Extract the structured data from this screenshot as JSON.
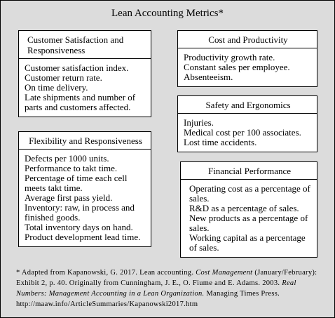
{
  "title": "Lean Accounting Metrics*",
  "boxes": [
    {
      "title": "Customer Satisfaction and Responsiveness",
      "items": [
        "Customer satisfaction index.",
        "Customer return rate.",
        "On time delivery.",
        "Late shipments and number of parts and customers affected."
      ]
    },
    {
      "title": "Flexibility and Responsiveness",
      "items": [
        "Defects per 1000 units.",
        "Performance to takt time.",
        "Percentage of time each cell meets takt time.",
        "Average first pass yield.",
        "Inventory: raw, in process and finished goods.",
        "Total inventory days on hand.",
        "Product development lead time."
      ]
    },
    {
      "title": "Cost and Productivity",
      "items": [
        "Productivity growth rate.",
        "Constant sales per employee.",
        "Absenteeism."
      ]
    },
    {
      "title": "Safety and Ergonomics",
      "items": [
        "Injuries.",
        "Medical cost per 100 associates.",
        "Lost time accidents."
      ]
    },
    {
      "title": "Financial Performance",
      "items": [
        "Operating cost as a percentage of sales.",
        "R&D as a percentage of sales.",
        "New products as a percentage of sales.",
        "Working capital as a percentage of sales."
      ]
    }
  ],
  "footnote": [
    {
      "text": "* Adapted from Kapanowski, G. 2017. Lean accounting. ",
      "italic": false
    },
    {
      "text": "Cost Management",
      "italic": true
    },
    {
      "text": " (January/February): Exhibit 2, p. 40. Originally from Cunningham, J. E., O. Fiume and E. Adams. 2003. ",
      "italic": false
    },
    {
      "text": "Real Numbers: Management Accounting in a Lean Organization.",
      "italic": true
    },
    {
      "text": " Managing Times Press.  http://maaw.info/ArticleSummaries/Kapanowski2017.htm",
      "italic": false
    }
  ]
}
